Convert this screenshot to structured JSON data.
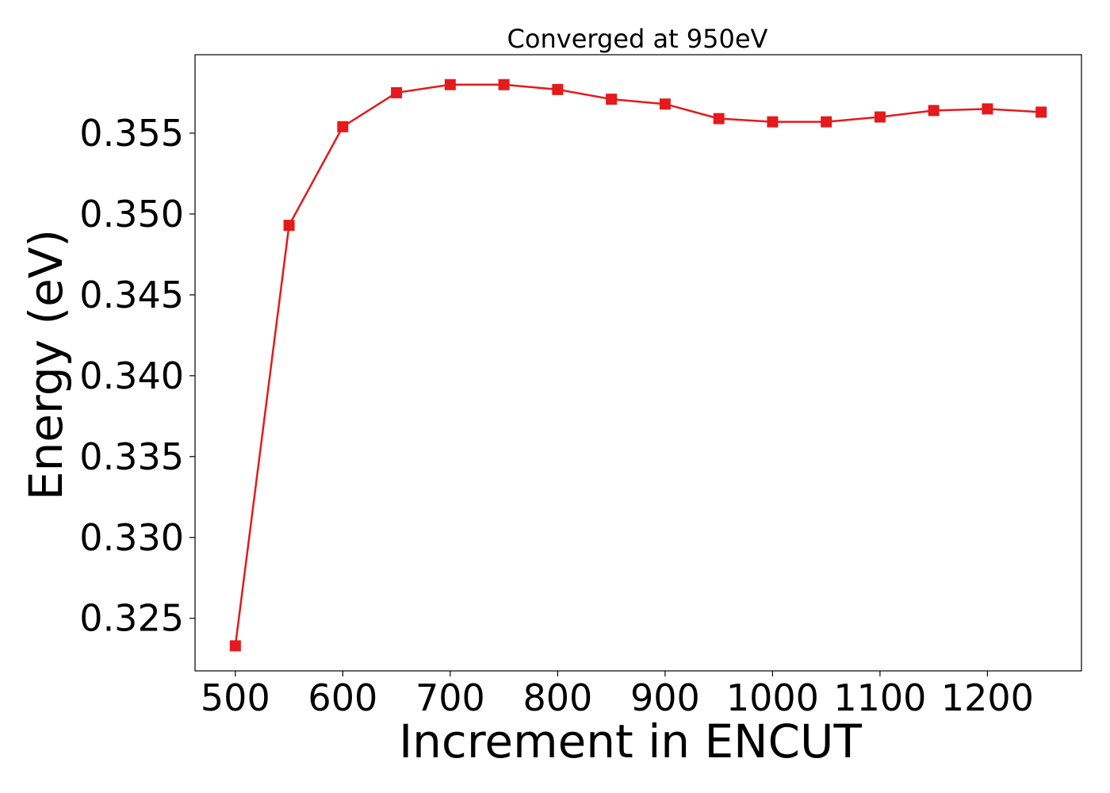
{
  "chart_data": {
    "type": "line",
    "title": "Converged at 950eV",
    "xlabel": "Increment in ENCUT",
    "ylabel": "Energy (eV)",
    "x": [
      500,
      550,
      600,
      650,
      700,
      750,
      800,
      850,
      900,
      950,
      1000,
      1050,
      1100,
      1150,
      1200,
      1250
    ],
    "series": [
      {
        "values": [
          0.3233,
          0.3493,
          0.3554,
          0.3575,
          0.358,
          0.358,
          0.3577,
          0.3571,
          0.3568,
          0.3559,
          0.3557,
          0.3557,
          0.356,
          0.3564,
          0.3565,
          0.3563
        ],
        "color": "#e41a1c",
        "marker": "square"
      }
    ],
    "xticks": [
      "500",
      "600",
      "700",
      "800",
      "900",
      "1000",
      "1100",
      "1200"
    ],
    "xtick_values": [
      500,
      600,
      700,
      800,
      900,
      1000,
      1100,
      1200
    ],
    "yticks": [
      "0.325",
      "0.330",
      "0.335",
      "0.340",
      "0.345",
      "0.350",
      "0.355"
    ],
    "ytick_values": [
      0.325,
      0.33,
      0.335,
      0.34,
      0.345,
      0.35,
      0.355
    ],
    "xlim": [
      462.5,
      1287.5
    ],
    "ylim": [
      0.32175,
      0.35985
    ],
    "grid": false,
    "legend": "none"
  }
}
